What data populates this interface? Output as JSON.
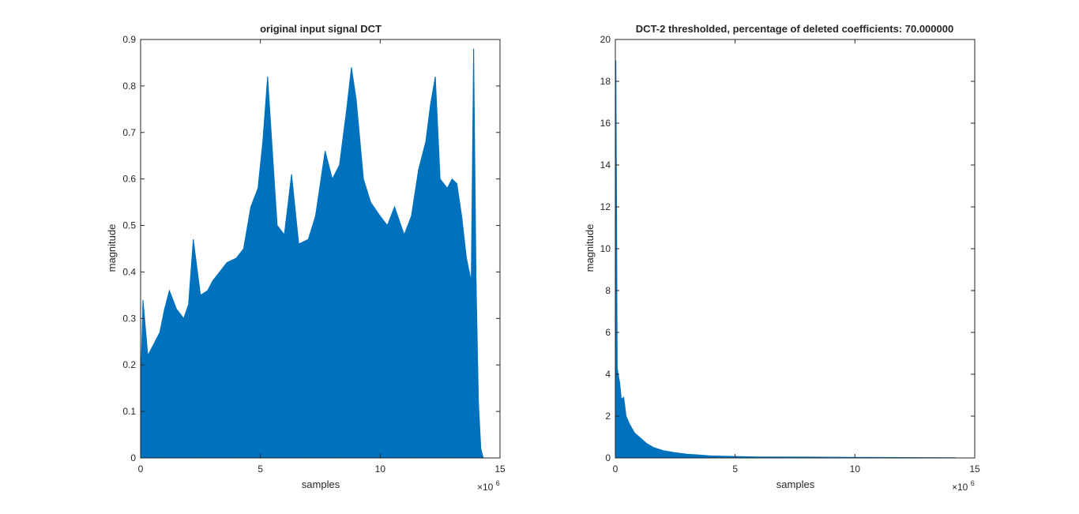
{
  "figure": {
    "background": "#ffffff",
    "series_color": "#0072BD",
    "axis_color": "#262626"
  },
  "chart_data": [
    {
      "type": "area",
      "title": "original input signal DCT",
      "xlabel": "samples",
      "ylabel": "magnitude",
      "x_exponent": "×10",
      "x_exponent_power": "6",
      "xlim": [
        0,
        15
      ],
      "ylim": [
        0,
        0.9
      ],
      "xticks": [
        0,
        5,
        10,
        15
      ],
      "yticks": [
        0,
        0.1,
        0.2,
        0.3,
        0.4,
        0.5,
        0.6,
        0.7,
        0.8,
        0.9
      ],
      "x_scale_note": "x values in units of 1e6 samples",
      "series": [
        {
          "x": [
            0,
            0.1,
            0.3,
            0.5,
            0.8,
            1.0,
            1.2,
            1.5,
            1.8,
            2.0,
            2.2,
            2.5,
            2.8,
            3.0,
            3.3,
            3.6,
            4.0,
            4.3,
            4.6,
            4.9,
            5.1,
            5.3,
            5.5,
            5.7,
            6.0,
            6.3,
            6.6,
            7.0,
            7.3,
            7.7,
            8.0,
            8.3,
            8.6,
            8.8,
            9.0,
            9.3,
            9.6,
            10.0,
            10.3,
            10.6,
            11.0,
            11.3,
            11.6,
            11.9,
            12.1,
            12.3,
            12.5,
            12.8,
            13.0,
            13.2,
            13.4,
            13.6,
            13.8,
            13.9,
            14.0,
            14.1,
            14.2,
            14.3
          ],
          "y": [
            0.15,
            0.34,
            0.22,
            0.24,
            0.27,
            0.32,
            0.36,
            0.32,
            0.3,
            0.33,
            0.47,
            0.35,
            0.36,
            0.38,
            0.4,
            0.42,
            0.43,
            0.45,
            0.54,
            0.58,
            0.68,
            0.82,
            0.66,
            0.5,
            0.48,
            0.61,
            0.46,
            0.47,
            0.52,
            0.66,
            0.6,
            0.63,
            0.75,
            0.84,
            0.77,
            0.6,
            0.55,
            0.52,
            0.5,
            0.54,
            0.48,
            0.52,
            0.62,
            0.68,
            0.76,
            0.82,
            0.6,
            0.58,
            0.6,
            0.59,
            0.52,
            0.43,
            0.38,
            0.88,
            0.38,
            0.12,
            0.02,
            0.0
          ]
        }
      ]
    },
    {
      "type": "area",
      "title": "DCT-2 thresholded, percentage of deleted coefficients: 70.000000",
      "xlabel": "samples",
      "ylabel": "magnitude",
      "x_exponent": "×10",
      "x_exponent_power": "6",
      "xlim": [
        0,
        15
      ],
      "ylim": [
        0,
        20
      ],
      "xticks": [
        0,
        5,
        10,
        15
      ],
      "yticks": [
        0,
        2,
        4,
        6,
        8,
        10,
        12,
        14,
        16,
        18,
        20
      ],
      "x_scale_note": "x values in units of 1e6 samples",
      "series": [
        {
          "x": [
            0,
            0.02,
            0.05,
            0.08,
            0.12,
            0.18,
            0.25,
            0.35,
            0.45,
            0.6,
            0.8,
            1.0,
            1.3,
            1.6,
            2.0,
            2.5,
            3.0,
            3.5,
            4.0,
            5.0,
            6.0,
            8.0,
            10.0,
            12.0,
            14.2
          ],
          "y": [
            0.1,
            19.0,
            12.5,
            4.3,
            4.0,
            3.6,
            2.8,
            2.9,
            2.0,
            1.6,
            1.2,
            1.0,
            0.7,
            0.5,
            0.35,
            0.25,
            0.18,
            0.14,
            0.1,
            0.07,
            0.05,
            0.04,
            0.03,
            0.02,
            0.01
          ]
        }
      ]
    }
  ]
}
